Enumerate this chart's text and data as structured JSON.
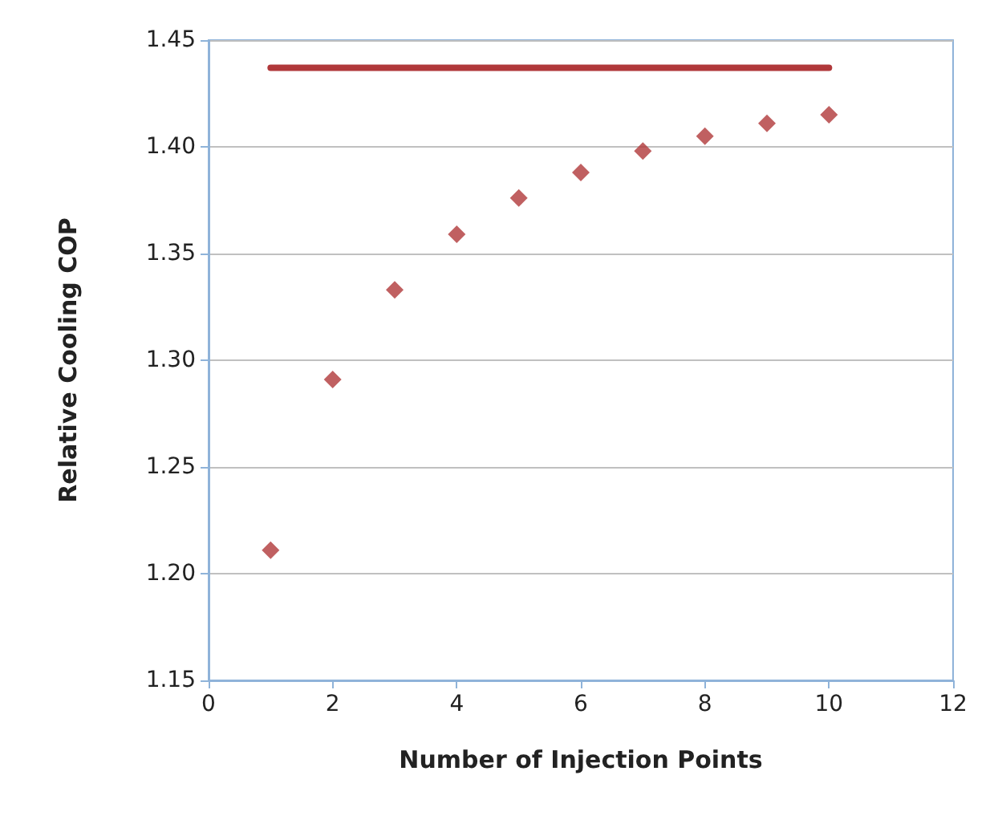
{
  "chart_data": {
    "type": "scatter",
    "xlabel": "Number of Injection Points",
    "ylabel": "Relative Cooling COP",
    "x": [
      1,
      2,
      3,
      4,
      5,
      6,
      7,
      8,
      9,
      10
    ],
    "series": [
      {
        "color": "#b0383a",
        "marker": "diamond",
        "values": [
          1.211,
          1.291,
          1.333,
          1.359,
          1.376,
          1.388,
          1.398,
          1.405,
          1.411,
          1.415
        ]
      },
      {
        "type": "line",
        "color": "#b0383a",
        "marker": "none",
        "line_style": "solid",
        "x": [
          1,
          10
        ],
        "values": [
          1.437,
          1.437
        ]
      }
    ],
    "xlim": [
      0,
      12
    ],
    "xticks": [
      0,
      2,
      4,
      6,
      8,
      10,
      12
    ],
    "ylim": [
      1.15,
      1.45
    ],
    "yticks": [
      1.15,
      {
        "value": 1.2,
        "label": "1.20"
      },
      1.25,
      {
        "value": 1.3,
        "label": "1.30"
      },
      1.35,
      {
        "value": 1.4,
        "label": "1.40"
      },
      1.45
    ],
    "grid": "y"
  }
}
